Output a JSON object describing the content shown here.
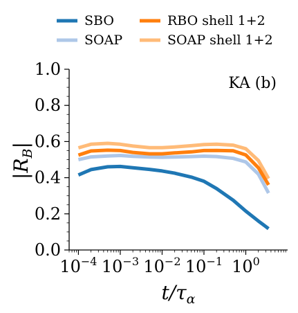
{
  "chart_data": {
    "type": "line",
    "title": "",
    "annotation": "KA (b)",
    "xlabel": "t/τα",
    "ylabel": "|RB|",
    "xscale": "log",
    "xlim": [
      6e-05,
      10
    ],
    "ylim": [
      0.0,
      1.0
    ],
    "grid": false,
    "legend": {
      "placement": "top-outside",
      "columns": 2
    },
    "x_ticks": [
      {
        "value": 0.0001,
        "base": "10",
        "exp": "−4"
      },
      {
        "value": 0.001,
        "base": "10",
        "exp": "−3"
      },
      {
        "value": 0.01,
        "base": "10",
        "exp": "−2"
      },
      {
        "value": 0.1,
        "base": "10",
        "exp": "−1"
      },
      {
        "value": 1,
        "base": "10",
        "exp": "0"
      }
    ],
    "y_ticks": [
      {
        "value": 0.0,
        "label": "0.0"
      },
      {
        "value": 0.2,
        "label": "0.2"
      },
      {
        "value": 0.4,
        "label": "0.4"
      },
      {
        "value": 0.6,
        "label": "0.6"
      },
      {
        "value": 0.8,
        "label": "0.8"
      },
      {
        "value": 1.0,
        "label": "1.0"
      }
    ],
    "x": [
      0.0001,
      0.0002,
      0.0005,
      0.001,
      0.002,
      0.005,
      0.01,
      0.02,
      0.05,
      0.1,
      0.2,
      0.5,
      1,
      2,
      3.5
    ],
    "series": [
      {
        "name": "SBO",
        "color": "#1f77b4",
        "values": [
          0.415,
          0.445,
          0.46,
          0.462,
          0.455,
          0.446,
          0.437,
          0.425,
          0.403,
          0.38,
          0.34,
          0.275,
          0.215,
          0.16,
          0.118
        ]
      },
      {
        "name": "SOAP",
        "color": "#aec7e8",
        "values": [
          0.5,
          0.515,
          0.52,
          0.523,
          0.518,
          0.514,
          0.513,
          0.514,
          0.517,
          0.519,
          0.517,
          0.507,
          0.487,
          0.42,
          0.315
        ]
      },
      {
        "name": "RBO shell 1+2",
        "color": "#ff7f0e",
        "values": [
          0.525,
          0.548,
          0.552,
          0.55,
          0.54,
          0.532,
          0.532,
          0.537,
          0.543,
          0.55,
          0.551,
          0.549,
          0.526,
          0.455,
          0.36
        ]
      },
      {
        "name": "SOAP shell 1+2",
        "color": "#ffbb78",
        "values": [
          0.565,
          0.585,
          0.59,
          0.585,
          0.575,
          0.566,
          0.566,
          0.57,
          0.577,
          0.583,
          0.585,
          0.58,
          0.56,
          0.495,
          0.395
        ]
      }
    ]
  }
}
